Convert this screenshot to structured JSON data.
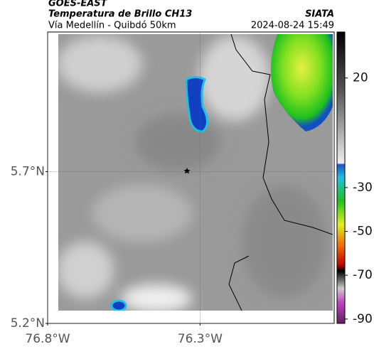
{
  "header": {
    "title": "GOES-EAST",
    "subtitle": "Temperatura de Brillo CH13",
    "region": "Vía Medellín - Quibdó 50km",
    "source": "SIATA",
    "datetime": "2024-08-24 15:49"
  },
  "map": {
    "latlim": [
      5.2,
      6.16
    ],
    "lonlim": [
      -76.8,
      -75.86
    ],
    "lat_ticks": [
      {
        "value": 5.7,
        "label": "5.7°N"
      },
      {
        "value": 5.2,
        "label": "5.2°N"
      }
    ],
    "lon_ticks": [
      {
        "value": -76.8,
        "label": "76.8°W"
      },
      {
        "value": -76.3,
        "label": "76.3°W"
      }
    ],
    "grid": true
  },
  "colorbar": {
    "lim": [
      -92,
      41
    ],
    "ticks": [
      20,
      -30,
      -50,
      -70,
      -90
    ]
  }
}
